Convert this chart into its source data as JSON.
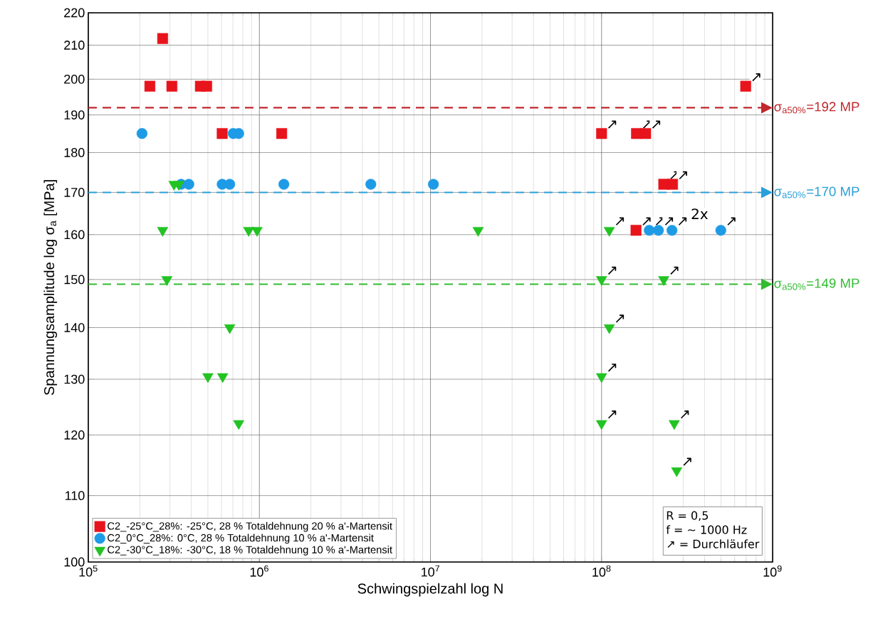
{
  "chart_data": {
    "type": "scatter",
    "xlabel": "Schwingspielzahl log N",
    "ylabel": "Spannungsamplitude log σ$_{a}$ [MPa]",
    "log": "xy",
    "grid": true,
    "legend": "bottom left",
    "xlim": [
      100000,
      1000000000
    ],
    "xticks": [
      {
        "value": 100000,
        "label": "10$^{5}$"
      },
      {
        "value": 1000000,
        "label": "10$^{6}$"
      },
      {
        "value": 10000000,
        "label": "10$^{7}$"
      },
      {
        "value": 100000000,
        "label": "10$^{8}$"
      },
      {
        "value": 1000000000,
        "label": "10$^{9}$"
      }
    ],
    "ylim": [
      100,
      220
    ],
    "yticks": [
      100,
      110,
      120,
      130,
      140,
      150,
      160,
      170,
      180,
      190,
      200,
      210,
      220
    ],
    "series": [
      {
        "name": "C2_-25°C_28%:  -25°C, 28 % Totaldehnung  20 % a'-Martensit",
        "color": "#e8141c",
        "marker": "square",
        "x": [
          272000,
          229000,
          308000,
          452000,
          492000,
          606000,
          1350000,
          100000000,
          160000000,
          181000000,
          231000000,
          260000000,
          159000000,
          696000000
        ],
        "values": [
          212,
          198,
          198,
          198,
          198,
          185,
          185,
          185,
          185,
          185,
          172,
          172,
          161,
          198
        ]
      },
      {
        "name": "C2_0°C_28%:  0°C, 28 % Totaldehnung  10 % a'-Martensit",
        "color": "#1e9be6",
        "marker": "circle",
        "x": [
          206000,
          703000,
          757000,
          349000,
          387000,
          606000,
          671000,
          1390000,
          4480000,
          10400000,
          190000000,
          215000000,
          258000000,
          498000000
        ],
        "values": [
          185,
          185,
          185,
          172,
          172,
          172,
          172,
          172,
          172,
          172,
          161,
          161,
          161,
          161
        ]
      },
      {
        "name": "C2_-30°C_18%:  -30°C, 18 % Totaldehnung  10 % a'-Martensit",
        "color": "#22c322",
        "marker": "triangle",
        "x": [
          317000,
          338000,
          272000,
          866000,
          969000,
          19000000,
          111000000,
          288000,
          100000000,
          231000000,
          671000,
          111000000,
          500000,
          610000,
          100000000,
          757000,
          100000000,
          266000000,
          275000000
        ],
        "values": [
          172,
          172,
          161,
          161,
          161,
          161,
          161,
          150,
          150,
          150,
          140,
          140,
          130.5,
          130.5,
          130.5,
          122,
          122,
          122,
          114
        ]
      }
    ],
    "ref_lines": [
      {
        "axis": "y",
        "value": 192,
        "label": "σ$_{a50%}$=192 MP",
        "color": "#c0282d",
        "line_style": "dashed"
      },
      {
        "axis": "y",
        "value": 170,
        "label": "σ$_{a50%}$=170 MP",
        "color": "#2a9fd8",
        "line_style": "dashed"
      },
      {
        "axis": "y",
        "value": 149,
        "label": "σ$_{a50%}$=149 MP",
        "color": "#33bb33",
        "line_style": "dashed"
      }
    ],
    "annotations": [
      "R = 0,5",
      "f = ~ 1000 Hz",
      "↗ = Durchläufer",
      {
        "text": "2x",
        "x": 258000000,
        "y": 161
      },
      {
        "text": "↗",
        "x": 100000000,
        "y": 185
      },
      {
        "text": "↗",
        "x": 160000000,
        "y": 185
      },
      {
        "text": "↗",
        "x": 181000000,
        "y": 185
      },
      {
        "text": "↗",
        "x": 231000000,
        "y": 172
      },
      {
        "text": "↗",
        "x": 260000000,
        "y": 172
      },
      {
        "text": "↗",
        "x": 159000000,
        "y": 161
      },
      {
        "text": "↗",
        "x": 696000000,
        "y": 198
      },
      {
        "text": "↗",
        "x": 190000000,
        "y": 161
      },
      {
        "text": "↗",
        "x": 215000000,
        "y": 161
      },
      {
        "text": "↗",
        "x": 258000000,
        "y": 161
      },
      {
        "text": "↗",
        "x": 498000000,
        "y": 161
      },
      {
        "text": "↗",
        "x": 111000000,
        "y": 161
      },
      {
        "text": "↗",
        "x": 100000000,
        "y": 150
      },
      {
        "text": "↗",
        "x": 231000000,
        "y": 150
      },
      {
        "text": "↗",
        "x": 111000000,
        "y": 140
      },
      {
        "text": "↗",
        "x": 100000000,
        "y": 130.5
      },
      {
        "text": "↗",
        "x": 100000000,
        "y": 122
      },
      {
        "text": "↗",
        "x": 266000000,
        "y": 122
      },
      {
        "text": "↗",
        "x": 275000000,
        "y": 114
      }
    ]
  }
}
